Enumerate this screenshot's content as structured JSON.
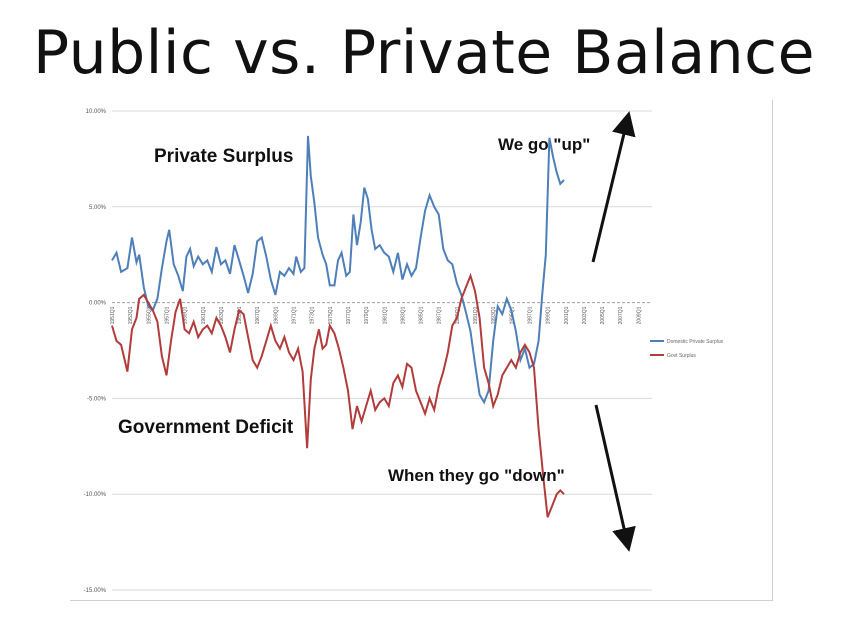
{
  "slide": {
    "title": "Public vs. Private Balance"
  },
  "annotations": {
    "private_surplus": "Private Surplus",
    "government_deficit": "Government Deficit",
    "we_go_up": "We go \"up\"",
    "when_they_go_down": "When they go \"down\""
  },
  "colors": {
    "private": "#4f7fb8",
    "govt": "#b23b3b",
    "grid": "#d9d9d9",
    "zero": "#a0a0a0",
    "arrow": "#111111"
  },
  "chart_data": {
    "type": "line",
    "ylim": [
      -15,
      10
    ],
    "y_ticks": [
      10,
      5,
      0,
      -5,
      -10,
      -15
    ],
    "y_tick_labels": [
      "10.00%",
      "5.00%",
      "0.00%",
      "-5.00%",
      "-10.00%",
      "-15.00%"
    ],
    "x_tick_labels": [
      "1951Q1",
      "1953Q1",
      "1955Q1",
      "1957Q1",
      "1959Q1",
      "1961Q1",
      "1963Q1",
      "1965Q1",
      "1967Q1",
      "1969Q1",
      "1971Q1",
      "1973Q1",
      "1975Q1",
      "1977Q1",
      "1979Q1",
      "1981Q1",
      "1983Q1",
      "1985Q1",
      "1987Q1",
      "1989Q1",
      "1991Q1",
      "1993Q1",
      "1995Q1",
      "1997Q1",
      "1999Q1",
      "2001Q1",
      "2003Q1",
      "2005Q1",
      "2007Q1",
      "2009Q1"
    ],
    "xlim": [
      1951,
      2010.5
    ],
    "legend": {
      "position": "right",
      "entries": [
        "Domestic Private Surplus",
        "Govt Surplus"
      ]
    },
    "series": [
      {
        "name": "Domestic Private Surplus",
        "color": "#4f7fb8",
        "points": [
          [
            1951,
            2.2
          ],
          [
            1951.5,
            2.6
          ],
          [
            1952,
            1.6
          ],
          [
            1952.7,
            1.8
          ],
          [
            1953.2,
            3.4
          ],
          [
            1953.7,
            2.1
          ],
          [
            1954,
            2.5
          ],
          [
            1954.5,
            0.8
          ],
          [
            1955,
            -0.2
          ],
          [
            1955.5,
            -0.4
          ],
          [
            1956,
            0.2
          ],
          [
            1956.5,
            1.8
          ],
          [
            1957,
            3.2
          ],
          [
            1957.3,
            3.8
          ],
          [
            1957.8,
            2.0
          ],
          [
            1958.3,
            1.4
          ],
          [
            1958.8,
            0.6
          ],
          [
            1959.2,
            2.4
          ],
          [
            1959.6,
            2.8
          ],
          [
            1960,
            1.9
          ],
          [
            1960.5,
            2.4
          ],
          [
            1961,
            2.0
          ],
          [
            1961.5,
            2.2
          ],
          [
            1962,
            1.6
          ],
          [
            1962.5,
            2.9
          ],
          [
            1963,
            2.0
          ],
          [
            1963.5,
            2.2
          ],
          [
            1964,
            1.5
          ],
          [
            1964.5,
            3.0
          ],
          [
            1965,
            2.2
          ],
          [
            1965.5,
            1.4
          ],
          [
            1966,
            0.5
          ],
          [
            1966.5,
            1.5
          ],
          [
            1967,
            3.2
          ],
          [
            1967.5,
            3.4
          ],
          [
            1968,
            2.4
          ],
          [
            1968.5,
            1.2
          ],
          [
            1969,
            0.4
          ],
          [
            1969.5,
            1.6
          ],
          [
            1970,
            1.4
          ],
          [
            1970.5,
            1.8
          ],
          [
            1971,
            1.5
          ],
          [
            1971.3,
            2.4
          ],
          [
            1971.8,
            1.6
          ],
          [
            1972.2,
            1.8
          ],
          [
            1972.6,
            8.7
          ],
          [
            1972.9,
            6.6
          ],
          [
            1973.3,
            5.2
          ],
          [
            1973.7,
            3.4
          ],
          [
            1974.2,
            2.5
          ],
          [
            1974.6,
            2.0
          ],
          [
            1975,
            0.9
          ],
          [
            1975.5,
            0.9
          ],
          [
            1975.9,
            2.2
          ],
          [
            1976.3,
            2.6
          ],
          [
            1976.8,
            1.4
          ],
          [
            1977.2,
            1.6
          ],
          [
            1977.6,
            4.6
          ],
          [
            1978,
            3.0
          ],
          [
            1978.4,
            4.2
          ],
          [
            1978.8,
            6.0
          ],
          [
            1979.2,
            5.4
          ],
          [
            1979.6,
            3.8
          ],
          [
            1980,
            2.8
          ],
          [
            1980.5,
            3.0
          ],
          [
            1981,
            2.6
          ],
          [
            1981.5,
            2.4
          ],
          [
            1982,
            1.6
          ],
          [
            1982.5,
            2.6
          ],
          [
            1983,
            1.2
          ],
          [
            1983.5,
            2.0
          ],
          [
            1984,
            1.4
          ],
          [
            1984.5,
            1.8
          ],
          [
            1985,
            3.4
          ],
          [
            1985.5,
            4.8
          ],
          [
            1986,
            5.6
          ],
          [
            1986.5,
            5.0
          ],
          [
            1987,
            4.6
          ],
          [
            1987.5,
            2.8
          ],
          [
            1988,
            2.2
          ],
          [
            1988.5,
            2.0
          ],
          [
            1989,
            1.0
          ],
          [
            1989.5,
            0.4
          ],
          [
            1990,
            -0.5
          ],
          [
            1990.5,
            -1.5
          ],
          [
            1991,
            -3.2
          ],
          [
            1991.5,
            -4.8
          ],
          [
            1992,
            -5.2
          ],
          [
            1992.5,
            -4.6
          ],
          [
            1993,
            -2.0
          ],
          [
            1993.5,
            -0.2
          ],
          [
            1994,
            -0.6
          ],
          [
            1994.5,
            0.2
          ],
          [
            1995,
            -0.4
          ],
          [
            1995.5,
            -1.5
          ],
          [
            1996,
            -3.0
          ],
          [
            1996.5,
            -2.4
          ],
          [
            1997,
            -3.4
          ],
          [
            1997.5,
            -3.2
          ],
          [
            1998,
            -2.0
          ],
          [
            1998.4,
            0.4
          ],
          [
            1998.8,
            2.5
          ],
          [
            1999.2,
            8.6
          ],
          [
            1999.6,
            7.6
          ],
          [
            2000,
            6.8
          ],
          [
            2000.4,
            6.2
          ],
          [
            2000.8,
            6.4
          ]
        ]
      },
      {
        "name": "Govt Surplus",
        "color": "#b23b3b",
        "points": [
          [
            1951,
            -1.2
          ],
          [
            1951.5,
            -2.0
          ],
          [
            1952,
            -2.2
          ],
          [
            1952.7,
            -3.6
          ],
          [
            1953.2,
            -1.4
          ],
          [
            1953.7,
            -0.8
          ],
          [
            1954,
            0.2
          ],
          [
            1954.5,
            0.4
          ],
          [
            1955,
            0.0
          ],
          [
            1955.5,
            -0.4
          ],
          [
            1956,
            -1.0
          ],
          [
            1956.5,
            -2.8
          ],
          [
            1957,
            -3.8
          ],
          [
            1957.5,
            -2.0
          ],
          [
            1958,
            -0.5
          ],
          [
            1958.5,
            0.2
          ],
          [
            1959,
            -1.4
          ],
          [
            1959.5,
            -1.6
          ],
          [
            1960,
            -1.0
          ],
          [
            1960.5,
            -1.8
          ],
          [
            1961,
            -1.4
          ],
          [
            1961.5,
            -1.2
          ],
          [
            1962,
            -1.6
          ],
          [
            1962.5,
            -0.8
          ],
          [
            1963,
            -1.2
          ],
          [
            1963.5,
            -1.8
          ],
          [
            1964,
            -2.6
          ],
          [
            1964.5,
            -1.4
          ],
          [
            1965,
            -0.4
          ],
          [
            1965.5,
            -0.6
          ],
          [
            1966,
            -1.8
          ],
          [
            1966.5,
            -3.0
          ],
          [
            1967,
            -3.4
          ],
          [
            1967.5,
            -2.8
          ],
          [
            1968,
            -2.0
          ],
          [
            1968.5,
            -1.2
          ],
          [
            1969,
            -2.0
          ],
          [
            1969.5,
            -2.4
          ],
          [
            1970,
            -1.8
          ],
          [
            1970.5,
            -2.6
          ],
          [
            1971,
            -3.0
          ],
          [
            1971.5,
            -2.4
          ],
          [
            1972,
            -3.6
          ],
          [
            1972.5,
            -7.6
          ],
          [
            1972.9,
            -4.0
          ],
          [
            1973.3,
            -2.4
          ],
          [
            1973.8,
            -1.4
          ],
          [
            1974.2,
            -2.4
          ],
          [
            1974.6,
            -2.2
          ],
          [
            1975,
            -1.2
          ],
          [
            1975.5,
            -1.6
          ],
          [
            1976,
            -2.4
          ],
          [
            1976.5,
            -3.4
          ],
          [
            1977,
            -4.6
          ],
          [
            1977.5,
            -6.6
          ],
          [
            1978,
            -5.4
          ],
          [
            1978.5,
            -6.2
          ],
          [
            1979,
            -5.4
          ],
          [
            1979.5,
            -4.6
          ],
          [
            1980,
            -5.6
          ],
          [
            1980.5,
            -5.2
          ],
          [
            1981,
            -5.0
          ],
          [
            1981.5,
            -5.4
          ],
          [
            1982,
            -4.2
          ],
          [
            1982.5,
            -3.8
          ],
          [
            1983,
            -4.4
          ],
          [
            1983.5,
            -3.2
          ],
          [
            1984,
            -3.4
          ],
          [
            1984.5,
            -4.6
          ],
          [
            1985,
            -5.2
          ],
          [
            1985.5,
            -5.8
          ],
          [
            1986,
            -5.0
          ],
          [
            1986.5,
            -5.6
          ],
          [
            1987,
            -4.4
          ],
          [
            1987.5,
            -3.6
          ],
          [
            1988,
            -2.6
          ],
          [
            1988.5,
            -1.2
          ],
          [
            1989,
            -0.8
          ],
          [
            1989.5,
            0.2
          ],
          [
            1990,
            0.8
          ],
          [
            1990.5,
            1.4
          ],
          [
            1991,
            0.6
          ],
          [
            1991.5,
            -0.8
          ],
          [
            1992,
            -3.4
          ],
          [
            1992.5,
            -4.2
          ],
          [
            1993,
            -5.4
          ],
          [
            1993.5,
            -4.8
          ],
          [
            1994,
            -3.8
          ],
          [
            1994.5,
            -3.4
          ],
          [
            1995,
            -3.0
          ],
          [
            1995.5,
            -3.4
          ],
          [
            1996,
            -2.6
          ],
          [
            1996.5,
            -2.2
          ],
          [
            1997,
            -2.6
          ],
          [
            1997.5,
            -3.4
          ],
          [
            1998,
            -6.6
          ],
          [
            1998.5,
            -9.0
          ],
          [
            1999,
            -11.2
          ],
          [
            1999.5,
            -10.6
          ],
          [
            2000,
            -10.0
          ],
          [
            2000.4,
            -9.8
          ],
          [
            2000.8,
            -10.0
          ]
        ]
      }
    ]
  }
}
